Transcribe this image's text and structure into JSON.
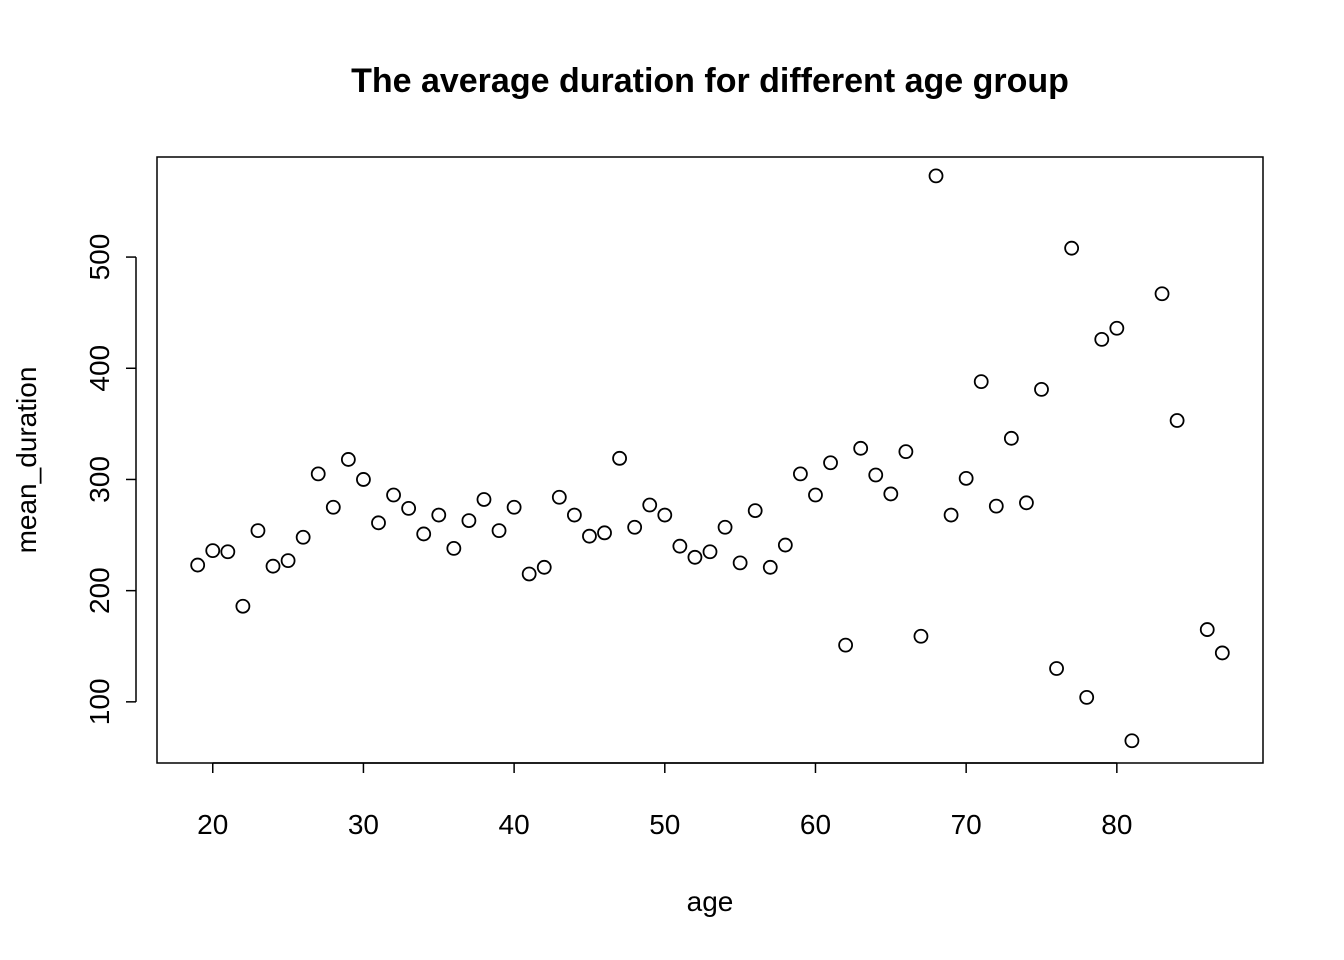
{
  "chart_data": {
    "type": "scatter",
    "title": "The average duration for different age group",
    "xlabel": "age",
    "ylabel": "mean_duration",
    "xlim": [
      16.3,
      89.7
    ],
    "ylim": [
      45,
      590
    ],
    "x_ticks": [
      20,
      30,
      40,
      50,
      60,
      70,
      80
    ],
    "y_ticks": [
      100,
      200,
      300,
      400,
      500
    ],
    "grid": false,
    "legend": "none",
    "marker": "open-circle",
    "marker_color": "#000000",
    "series": [
      {
        "x": [
          19,
          20,
          21,
          22,
          23,
          24,
          25,
          26,
          27,
          28,
          29,
          30,
          31,
          32,
          33,
          34,
          35,
          36,
          37,
          38,
          39,
          40,
          41,
          42,
          43,
          44,
          45,
          46,
          47,
          48,
          49,
          50,
          51,
          52,
          53,
          54,
          55,
          56,
          57,
          58,
          59,
          60,
          61,
          62,
          63,
          64,
          65,
          66,
          67,
          68,
          69,
          70,
          71,
          72,
          73,
          74,
          75,
          76,
          77,
          78,
          79,
          80,
          81,
          83,
          84,
          86,
          87
        ],
        "y": [
          223,
          236,
          235,
          186,
          254,
          222,
          227,
          248,
          305,
          275,
          318,
          300,
          261,
          286,
          274,
          251,
          268,
          238,
          263,
          282,
          254,
          275,
          215,
          221,
          284,
          268,
          249,
          252,
          319,
          257,
          277,
          268,
          240,
          230,
          235,
          257,
          225,
          272,
          221,
          241,
          305,
          286,
          315,
          151,
          328,
          304,
          287,
          325,
          159,
          573,
          268,
          301,
          388,
          276,
          337,
          279,
          381,
          130,
          508,
          104,
          426,
          436,
          65,
          467,
          353,
          165,
          144
        ]
      }
    ]
  }
}
